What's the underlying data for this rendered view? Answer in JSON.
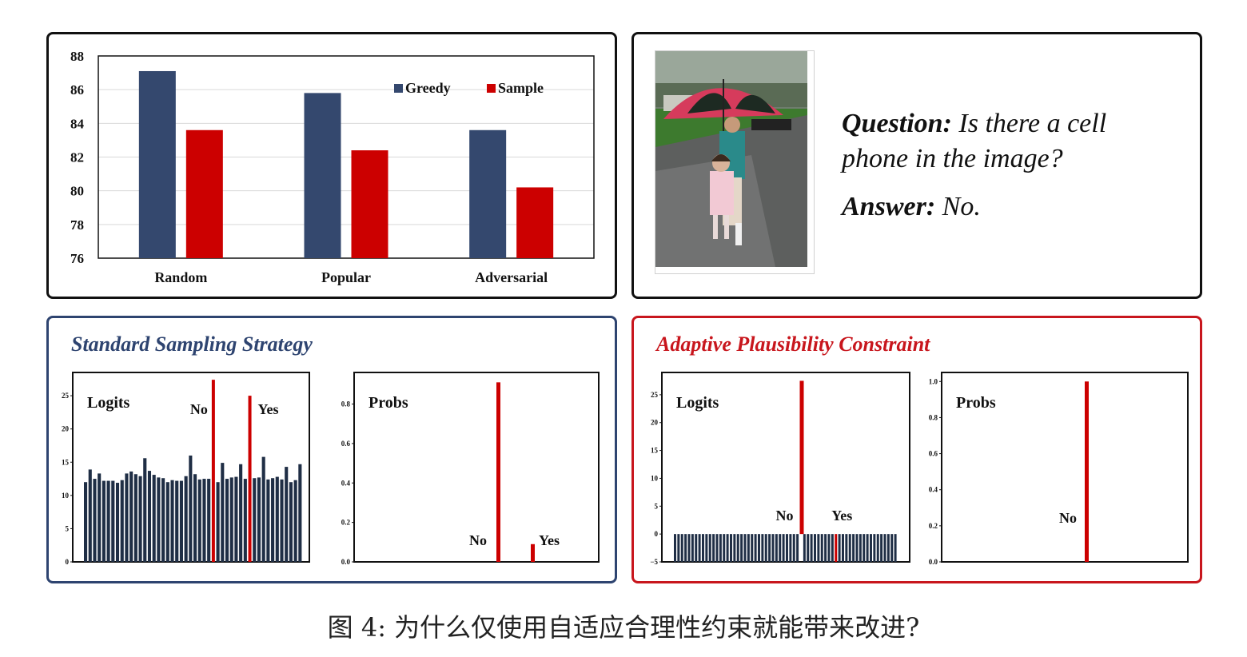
{
  "bar_chart": {
    "legend": [
      {
        "label": "Greedy",
        "color": "#34486e"
      },
      {
        "label": "Sample",
        "color": "#cc0000"
      }
    ]
  },
  "chart_data": [
    {
      "type": "bar",
      "categories": [
        "Random",
        "Popular",
        "Adversarial"
      ],
      "series": [
        {
          "name": "Greedy",
          "values": [
            87.1,
            85.8,
            83.6
          ]
        },
        {
          "name": "Sample",
          "values": [
            83.6,
            82.4,
            80.2
          ]
        }
      ],
      "yticks": [
        "76",
        "78",
        "80",
        "82",
        "84",
        "86",
        "88"
      ],
      "ylim": [
        76,
        88
      ],
      "legend_position": "top-right",
      "grid": true
    },
    {
      "type": "bar",
      "label": "Logits",
      "bars": [
        12,
        13.9,
        12.5,
        13.3,
        12.2,
        12.2,
        12.2,
        11.9,
        12.3,
        13.3,
        13.6,
        13.2,
        12.9,
        15.6,
        13.7,
        13.1,
        12.7,
        12.6,
        12,
        12.3,
        12.2,
        12.2,
        12.9,
        16,
        13.2,
        12.4,
        12.5,
        12.5,
        27.4,
        12,
        14.9,
        12.5,
        12.7,
        12.8,
        14.7,
        12.5,
        25,
        12.6,
        12.7,
        15.8,
        12.4,
        12.6,
        12.8,
        12.4,
        14.3,
        12,
        12.3,
        14.7
      ],
      "highlight_indices": [
        28,
        36
      ],
      "annotations": [
        "No",
        "Yes"
      ],
      "yticks": [
        "0",
        "5",
        "10",
        "15",
        "20",
        "25"
      ],
      "ylim": [
        0,
        28.5
      ]
    },
    {
      "type": "bar",
      "label": "Probs",
      "bars": [
        0.91,
        0.09
      ],
      "annotations": [
        "No",
        "Yes"
      ],
      "yticks": [
        "0.0",
        "0.2",
        "0.4",
        "0.6",
        "0.8"
      ],
      "ylim": [
        0,
        0.96
      ]
    },
    {
      "type": "bar",
      "label": "Logits",
      "bars": [
        0,
        0,
        0,
        0,
        0,
        0,
        0,
        0,
        0,
        0,
        0,
        0,
        0,
        0,
        0,
        0,
        0,
        0,
        0,
        0,
        0,
        0,
        0,
        0,
        0,
        0,
        0,
        0,
        0,
        0,
        0,
        0,
        0,
        0,
        0,
        0,
        27.5,
        0,
        0,
        0,
        0,
        0,
        0,
        0,
        0,
        0,
        0,
        0,
        0,
        0,
        0,
        0,
        0,
        0,
        0,
        0,
        0,
        0,
        0,
        0,
        0,
        0,
        0,
        0
      ],
      "highlight_indices": [
        36
      ],
      "marker_index": 46,
      "annotations": [
        "No",
        "Yes"
      ],
      "yticks": [
        "−5",
        "0",
        "5",
        "10",
        "15",
        "20",
        "25"
      ],
      "ylim": [
        -5,
        29
      ]
    },
    {
      "type": "bar",
      "label": "Probs",
      "bars": [
        1.0
      ],
      "annotations": [
        "No"
      ],
      "yticks": [
        "0.0",
        "0.2",
        "0.4",
        "0.6",
        "0.8",
        "1.0"
      ],
      "ylim": [
        0,
        1.05
      ]
    }
  ],
  "qa": {
    "question_label": "Question:",
    "question_text": " Is there a cell phone in the image?",
    "answer_label": "Answer:",
    "answer_text": " No."
  },
  "panels": {
    "standard_title": "Standard Sampling Strategy",
    "adaptive_title": "Adaptive Plausibility Constraint"
  },
  "caption": "图 4: 为什么仅使用自适应合理性约束就能带来改进?"
}
